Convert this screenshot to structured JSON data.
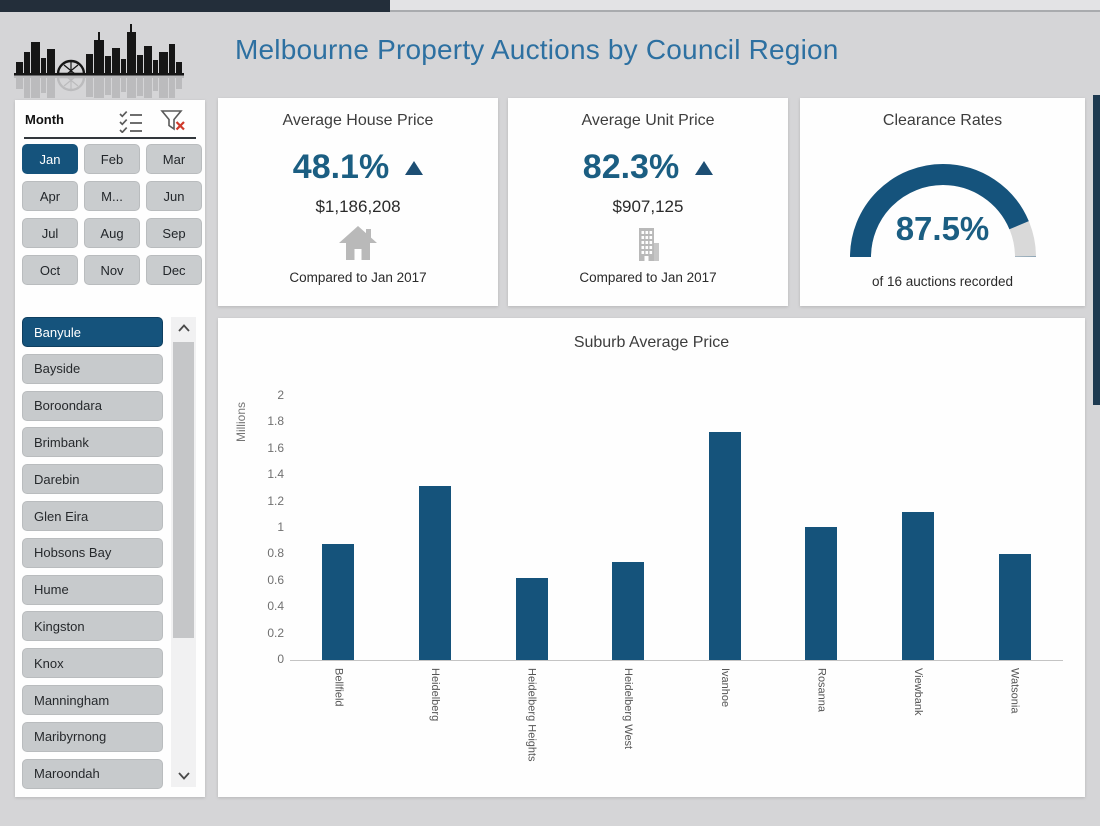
{
  "header": {
    "title": "Melbourne Property Auctions by Council Region"
  },
  "month_slicer": {
    "label": "Month",
    "months": [
      "Jan",
      "Feb",
      "Mar",
      "Apr",
      "M...",
      "Jun",
      "Jul",
      "Aug",
      "Sep",
      "Oct",
      "Nov",
      "Dec"
    ],
    "selected": "Jan"
  },
  "council_list": {
    "items": [
      "Banyule",
      "Bayside",
      "Boroondara",
      "Brimbank",
      "Darebin",
      "Glen Eira",
      "Hobsons Bay",
      "Hume",
      "Kingston",
      "Knox",
      "Manningham",
      "Maribyrnong",
      "Maroondah"
    ],
    "selected": "Banyule"
  },
  "kpi_cards": [
    {
      "title": "Average House Price",
      "percent": "48.1%",
      "trend": "up",
      "value": "$1,186,208",
      "icon": "house-icon",
      "caption": "Compared to Jan 2017"
    },
    {
      "title": "Average Unit Price",
      "percent": "82.3%",
      "trend": "up",
      "value": "$907,125",
      "icon": "building-icon",
      "caption": "Compared to Jan 2017"
    }
  ],
  "gauge_card": {
    "title": "Clearance Rates",
    "percent_label": "87.5%",
    "percent_value": 87.5,
    "caption": "of 16 auctions recorded"
  },
  "chart_data": {
    "type": "bar",
    "title": "Suburb Average Price",
    "ylabel": "Millions",
    "xlabel": "",
    "categories": [
      "Bellfield",
      "Heidelberg",
      "Heidelberg Heights",
      "Heidelberg West",
      "Ivanhoe",
      "Rosanna",
      "Viewbank",
      "Watsonia"
    ],
    "values": [
      0.88,
      1.32,
      0.62,
      0.74,
      1.73,
      1.01,
      1.12,
      0.8
    ],
    "ylim": [
      0,
      2
    ],
    "yticks": [
      0,
      0.2,
      0.4,
      0.6,
      0.8,
      1,
      1.2,
      1.4,
      1.6,
      1.8,
      2
    ],
    "grid": false,
    "legend": false,
    "bar_color": "#15537b"
  },
  "colors": {
    "accent": "#15537c",
    "kpi_text": "#1b5e82",
    "title_blue": "#2d70a1",
    "gauge_remainder": "#d9d9d9",
    "button_grey": "#c9ccce"
  }
}
